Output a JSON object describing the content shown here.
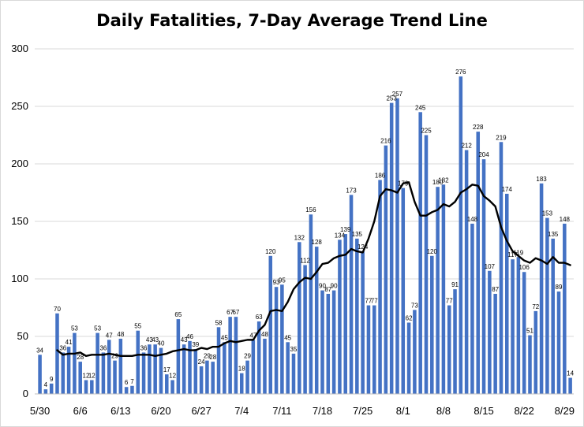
{
  "chart_data": {
    "type": "bar",
    "title": "Daily Fatalities, 7-Day Average Trend Line",
    "xlabel": "",
    "ylabel": "",
    "ylim": [
      0,
      300
    ],
    "yticks": [
      "0",
      "50",
      "100",
      "150",
      "200",
      "250",
      "300"
    ],
    "grid": true,
    "legend": "none",
    "bar_color": "#4472c4",
    "line_color": "#000000",
    "xtick_labels": [
      {
        "index": 0,
        "label": "5/30"
      },
      {
        "index": 7,
        "label": "6/6"
      },
      {
        "index": 14,
        "label": "6/13"
      },
      {
        "index": 21,
        "label": "6/20"
      },
      {
        "index": 28,
        "label": "6/27"
      },
      {
        "index": 35,
        "label": "7/4"
      },
      {
        "index": 42,
        "label": "7/11"
      },
      {
        "index": 49,
        "label": "7/18"
      },
      {
        "index": 56,
        "label": "7/25"
      },
      {
        "index": 63,
        "label": "8/1"
      },
      {
        "index": 70,
        "label": "8/8"
      },
      {
        "index": 77,
        "label": "8/15"
      },
      {
        "index": 84,
        "label": "8/22"
      },
      {
        "index": 91,
        "label": "8/29"
      }
    ],
    "series": [
      {
        "type": "bar",
        "values": [
          34,
          4,
          9,
          70,
          36,
          41,
          53,
          28,
          12,
          12,
          53,
          36,
          47,
          29,
          48,
          6,
          7,
          55,
          36,
          43,
          43,
          40,
          17,
          12,
          65,
          43,
          46,
          39,
          24,
          29,
          28,
          58,
          45,
          67,
          67,
          18,
          29,
          47,
          63,
          48,
          120,
          93,
          95,
          45,
          35,
          132,
          112,
          156,
          128,
          90,
          87,
          90,
          134,
          139,
          173,
          135,
          124,
          77,
          77,
          186,
          216,
          253,
          257,
          179,
          62,
          73,
          245,
          225,
          120,
          180,
          182,
          77,
          91,
          276,
          212,
          148,
          228,
          204,
          107,
          87,
          219,
          174,
          117,
          119,
          106,
          51,
          72,
          183,
          153,
          135,
          89,
          148,
          14
        ]
      },
      {
        "type": "line",
        "values": [
          null,
          null,
          null,
          38,
          34,
          35,
          35,
          36,
          33,
          34,
          34,
          34,
          35,
          34,
          33,
          33,
          33,
          34,
          34,
          34,
          33,
          34,
          35,
          37,
          38,
          39,
          38,
          38,
          40,
          39,
          41,
          41,
          44,
          46,
          45,
          46,
          47,
          47,
          55,
          60,
          72,
          73,
          72,
          80,
          91,
          97,
          101,
          100,
          106,
          113,
          114,
          118,
          120,
          121,
          126,
          124,
          123,
          135,
          150,
          172,
          178,
          177,
          175,
          183,
          184,
          167,
          155,
          155,
          158,
          160,
          165,
          163,
          167,
          175,
          178,
          182,
          181,
          172,
          168,
          163,
          145,
          133,
          124,
          120,
          116,
          114,
          118,
          116,
          113,
          119,
          114,
          114,
          112
        ]
      }
    ]
  }
}
